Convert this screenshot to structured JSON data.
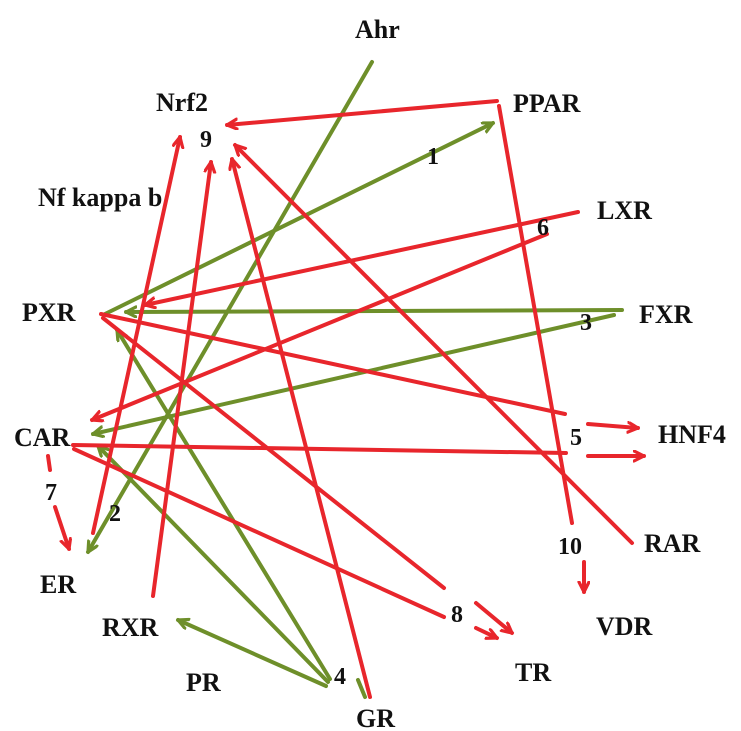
{
  "colors": {
    "red": "#e8262c",
    "green": "#6e8f2a",
    "text": "#111111"
  },
  "nodes": {
    "ahr": "Ahr",
    "nrf2": "Nrf2",
    "ppar": "PPAR",
    "lxr": "LXR",
    "nfkb": "Nf kappa b",
    "pxr": "PXR",
    "fxr": "FXR",
    "car": "CAR",
    "hnf4": "HNF4",
    "er": "ER",
    "rar": "RAR",
    "rxr": "RXR",
    "vdr": "VDR",
    "pr": "PR",
    "tr": "TR",
    "gr": "GR"
  },
  "edge_labels": {
    "n1": "1",
    "n2": "2",
    "n3": "3",
    "n4": "4",
    "n5": "5",
    "n6": "6",
    "n7": "7",
    "n8": "8",
    "n9": "9",
    "n10": "10"
  },
  "edges": [
    {
      "from": "PPAR",
      "to": "Nrf2",
      "color": "red"
    },
    {
      "from": "PPAR",
      "to": "VDR",
      "color": "red",
      "via": "10"
    },
    {
      "from": "PXR",
      "to": "PPAR",
      "color": "green",
      "via": "1"
    },
    {
      "from": "LXR",
      "to": "PXR",
      "color": "red",
      "via": "6"
    },
    {
      "from": "LXR",
      "to": "CAR",
      "color": "red",
      "via": "6"
    },
    {
      "from": "FXR",
      "to": "PXR",
      "color": "green"
    },
    {
      "from": "FXR",
      "to": "CAR",
      "color": "green",
      "via": "3"
    },
    {
      "from": "PXR",
      "to": "HNF4",
      "color": "red",
      "via": "5"
    },
    {
      "from": "CAR",
      "to": "HNF4",
      "color": "red",
      "via": "5"
    },
    {
      "from": "PXR",
      "to": "TR",
      "color": "red",
      "via": "8"
    },
    {
      "from": "CAR",
      "to": "TR",
      "color": "red",
      "via": "8"
    },
    {
      "from": "Ahr",
      "to": "ER",
      "color": "green",
      "via": "2"
    },
    {
      "from": "CAR",
      "to": "ER",
      "color": "red",
      "via": "7"
    },
    {
      "from": "ER",
      "to": "Nrf2",
      "color": "red",
      "via": "9"
    },
    {
      "from": "RXR",
      "to": "Nrf2",
      "color": "red",
      "via": "9"
    },
    {
      "from": "GR",
      "to": "Nrf2",
      "color": "red",
      "via": "9"
    },
    {
      "from": "RAR",
      "to": "Nrf2",
      "color": "red",
      "via": "9"
    },
    {
      "from": "GR",
      "to": "PXR",
      "color": "green",
      "via": "4"
    },
    {
      "from": "GR",
      "to": "CAR",
      "color": "green",
      "via": "4"
    },
    {
      "from": "GR",
      "to": "RXR",
      "color": "green",
      "via": "4"
    }
  ]
}
